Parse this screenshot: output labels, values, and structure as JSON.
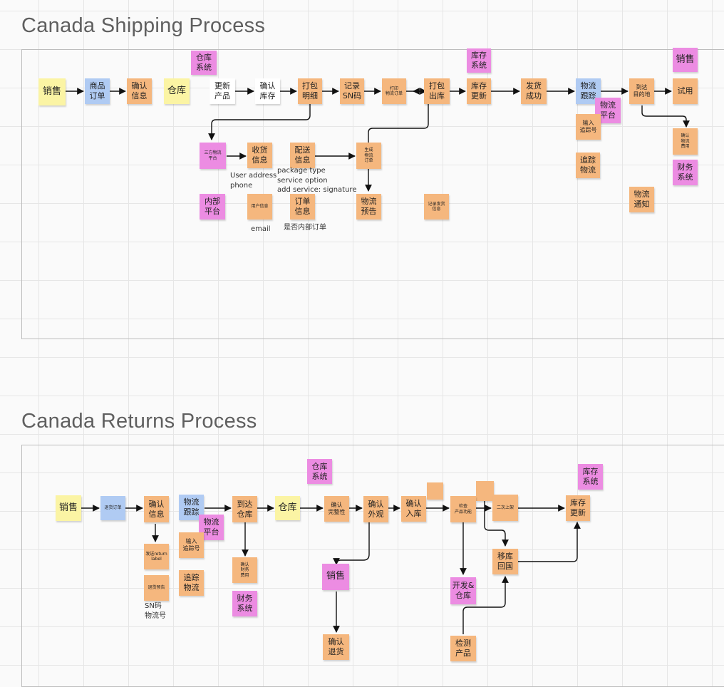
{
  "shipping": {
    "title": "Canada Shipping Process",
    "notes": {
      "sales": "销售",
      "order": "商品\n订单",
      "confirm_info": "确认\n信息",
      "warehouse": "仓库",
      "wms": "仓库\n系统",
      "update_product": "更新\n产品",
      "confirm_stock": "确认\n库存",
      "pack_detail": "打包\n明细",
      "record_sn": "记录\nSN码",
      "print_order": "打印\n物流订单",
      "pack_out": "打包\n出库",
      "inventory_system": "库存\n系统",
      "inventory_update": "库存\n更新",
      "ship_success": "发货\n成功",
      "logistics_track": "物流\n跟踪",
      "logistics_platform": "物流\n平台",
      "arrive": "到达\n目的地",
      "sales_top": "销售",
      "trial": "试用",
      "input_tracking": "输入\n追踪号",
      "track_logistics": "追踪\n物流",
      "logistics_notice": "物流\n通知",
      "confirm_fee": "确认\n物流\n费用",
      "finance": "财务\n系统",
      "third_party": "三方物流\n平台",
      "receiver_info": "收货\n信息",
      "delivery_info": "配送\n信息",
      "gen_order": "生成\n物流\n订单",
      "internal_platform": "内部\n平台",
      "user_info": "用户信息",
      "order_info": "订单\n信息",
      "logistics_forecast": "物流\n预告",
      "record_ship_info": "记录发货\n信息"
    },
    "labels": {
      "user_address": "User address\nphone",
      "package": "package type\nservice option\nadd service: signature",
      "email": "email",
      "internal_order": "是否内部订单"
    }
  },
  "returns": {
    "title": "Canada Returns Process",
    "notes": {
      "sales": "销售",
      "return_order": "退货订单",
      "confirm_info": "确认\n信息",
      "logistics_track": "物流\n跟踪",
      "logistics_platform": "物流\n平台",
      "input_tracking": "输入\n追踪号",
      "track_logistics": "追踪\n物流",
      "arrive_wh": "到达\n仓库",
      "wms": "仓库\n系统",
      "warehouse": "仓库",
      "confirm_complete": "确认\n完整性",
      "confirm_look": "确认\n外观",
      "confirm_in": "确认\n入库",
      "check_function": "检查\n产品功能",
      "reshelve": "二次上架",
      "inventory_system": "库存\n系统",
      "inventory_update": "库存\n更新",
      "send_label": "发送return\nlabel",
      "return_forecast": "退货预告",
      "confirm_fee": "确认\n财务\n费用",
      "finance": "财务\n系统",
      "sales_mid": "销售",
      "confirm_return": "确认\n退货",
      "move_home": "移库\n回国",
      "dev_wh": "开发&\n仓库",
      "test_product": "检测\n产品"
    },
    "labels": {
      "sn": "SN码\n物流号"
    }
  },
  "colors": {
    "orange": "#f5b77e",
    "pink": "#ec8ce2",
    "yellow": "#fbf4a4",
    "blue": "#b0cbf3"
  }
}
